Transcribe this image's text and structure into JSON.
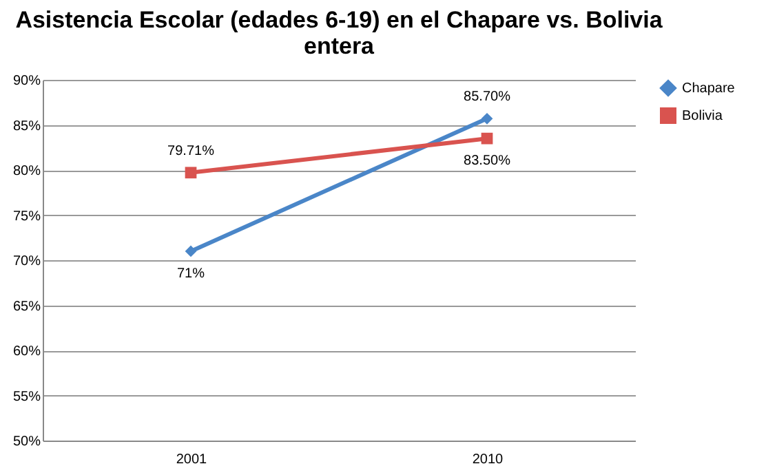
{
  "chart_data": {
    "type": "line",
    "title": "Asistencia Escolar (edades 6-19) en el Chapare vs. Bolivia entera",
    "categories": [
      "2001",
      "2010"
    ],
    "series": [
      {
        "name": "Chapare",
        "color": "#4a86c8",
        "marker": "diamond",
        "values": [
          71,
          85.7
        ],
        "value_labels": [
          "71%",
          "85.70%"
        ]
      },
      {
        "name": "Bolivia",
        "color": "#d9534f",
        "marker": "square",
        "values": [
          79.71,
          83.5
        ],
        "value_labels": [
          "79.71%",
          "83.50%"
        ]
      }
    ],
    "ylim": [
      50,
      90
    ],
    "yticks": [
      {
        "value": 50,
        "label": "50%"
      },
      {
        "value": 55,
        "label": "55%"
      },
      {
        "value": 60,
        "label": "60%"
      },
      {
        "value": 65,
        "label": "65%"
      },
      {
        "value": 70,
        "label": "70%"
      },
      {
        "value": 75,
        "label": "75%"
      },
      {
        "value": 80,
        "label": "80%"
      },
      {
        "value": 85,
        "label": "85%"
      },
      {
        "value": 90,
        "label": "90%"
      }
    ],
    "grid": "y",
    "legend": "right",
    "line_style": "solid"
  }
}
